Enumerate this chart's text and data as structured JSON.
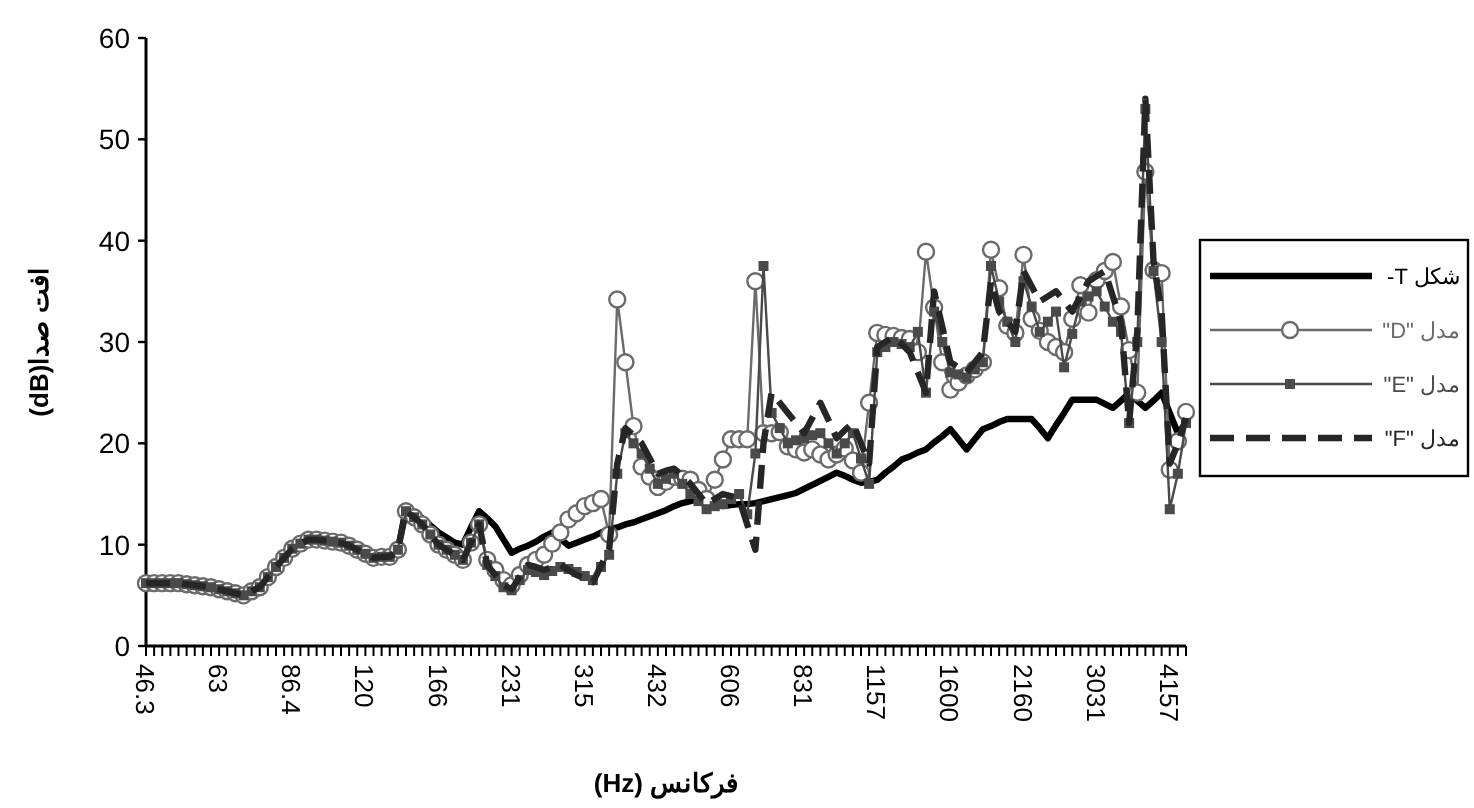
{
  "chart_data": {
    "type": "line",
    "xlabel": "فرکانس (Hz)",
    "ylabel": "افت صدا(dB)",
    "ylim": [
      0,
      60
    ],
    "yticks": [
      0,
      10,
      20,
      30,
      40,
      50,
      60
    ],
    "legend": "right",
    "grid": false,
    "categories": [
      "46.3",
      null,
      null,
      null,
      null,
      null,
      null,
      null,
      null,
      "63",
      null,
      null,
      null,
      null,
      null,
      null,
      null,
      null,
      "86.4",
      null,
      null,
      null,
      null,
      null,
      null,
      null,
      null,
      "120",
      null,
      null,
      null,
      null,
      null,
      null,
      null,
      null,
      "166",
      null,
      null,
      null,
      null,
      null,
      null,
      null,
      null,
      "231",
      null,
      null,
      null,
      null,
      null,
      null,
      null,
      null,
      "315",
      null,
      null,
      null,
      null,
      null,
      null,
      null,
      null,
      "432",
      null,
      null,
      null,
      null,
      null,
      null,
      null,
      null,
      "606",
      null,
      null,
      null,
      null,
      null,
      null,
      null,
      null,
      "831",
      null,
      null,
      null,
      null,
      null,
      null,
      null,
      null,
      "1157",
      null,
      null,
      null,
      null,
      null,
      null,
      null,
      null,
      "1600",
      null,
      null,
      null,
      null,
      null,
      null,
      null,
      null,
      "2160",
      null,
      null,
      null,
      null,
      null,
      null,
      null,
      null,
      "3031",
      null,
      null,
      null,
      null,
      null,
      null,
      null,
      null,
      "4157",
      null,
      null
    ],
    "series": [
      {
        "name": "شکل T-",
        "color": "#000000",
        "marker": "none",
        "line_style": "solid",
        "values": [
          6.2,
          6.2,
          6.2,
          6.2,
          6.2,
          6.1,
          6.0,
          5.9,
          5.8,
          5.6,
          5.4,
          5.2,
          5.0,
          5.4,
          5.8,
          6.8,
          7.8,
          8.7,
          9.6,
          10.1,
          10.5,
          10.5,
          10.4,
          10.3,
          10.2,
          9.9,
          9.5,
          9.1,
          8.7,
          8.8,
          8.8,
          9.5,
          13.6,
          13.1,
          12.6,
          11.9,
          11.2,
          10.7,
          10.2,
          10.0,
          11.7,
          13.3,
          12.6,
          11.8,
          10.5,
          9.2,
          9.6,
          9.9,
          10.3,
          10.8,
          11.2,
          10.6,
          9.9,
          10.2,
          10.5,
          10.8,
          11.2,
          11.5,
          11.7,
          12.0,
          12.2,
          12.5,
          12.8,
          13.1,
          13.4,
          13.8,
          14.1,
          14.3,
          14.5,
          14.3,
          14.0,
          13.8,
          13.9,
          14.0,
          14.0,
          14.1,
          14.3,
          14.5,
          14.7,
          14.9,
          15.1,
          15.5,
          15.9,
          16.3,
          16.7,
          17.1,
          16.8,
          16.4,
          16.1,
          16.2,
          16.4,
          17.1,
          17.7,
          18.4,
          18.7,
          19.1,
          19.4,
          20.1,
          20.7,
          21.4,
          20.4,
          19.4,
          20.4,
          21.4,
          21.7,
          22.1,
          22.4,
          22.4,
          22.4,
          22.4,
          21.5,
          20.5,
          21.8,
          23.0,
          24.3,
          24.3,
          24.3,
          24.3,
          23.9,
          23.5,
          24.2,
          25.0,
          24.2,
          23.5,
          24.2,
          25.0,
          23.0,
          21.0,
          22.0
        ]
      },
      {
        "name": "مدل \"D\"",
        "color": "#6b6b6b",
        "marker": "circle",
        "line_style": "solid",
        "values": [
          6.2,
          6.2,
          6.2,
          6.2,
          6.2,
          6.1,
          6.0,
          5.9,
          5.8,
          5.6,
          5.4,
          5.2,
          5.0,
          5.4,
          5.8,
          6.8,
          7.8,
          8.7,
          9.6,
          10.1,
          10.5,
          10.5,
          10.4,
          10.3,
          10.2,
          9.9,
          9.5,
          9.1,
          8.7,
          8.8,
          8.8,
          9.5,
          13.3,
          12.7,
          12.0,
          11.0,
          10.0,
          9.5,
          9.0,
          8.5,
          10.2,
          12.0,
          8.5,
          7.5,
          6.5,
          6.0,
          7.0,
          8.0,
          8.5,
          9.0,
          10.1,
          11.2,
          12.5,
          13.1,
          13.8,
          14.1,
          14.5,
          11.0,
          34.2,
          28.0,
          21.7,
          17.7,
          16.7,
          15.7,
          16.2,
          16.7,
          16.5,
          16.4,
          15.4,
          14.5,
          16.4,
          18.4,
          20.4,
          20.4,
          20.4,
          36.0,
          21.0,
          21.0,
          21.1,
          19.7,
          19.4,
          19.1,
          19.4,
          18.9,
          18.4,
          18.9,
          19.5,
          18.3,
          17.1,
          24.0,
          30.9,
          30.7,
          30.6,
          30.4,
          30.3,
          29.0,
          38.9,
          33.4,
          28.0,
          25.3,
          26.0,
          26.7,
          27.3,
          28.0,
          39.1,
          35.3,
          31.6,
          30.9,
          38.6,
          32.3,
          31.1,
          30.0,
          29.5,
          29.0,
          32.3,
          35.6,
          32.9,
          36.1,
          37.0,
          37.9,
          33.5,
          29.2,
          25.0,
          46.8,
          37.1,
          36.8,
          17.4,
          20.2,
          23.1
        ]
      },
      {
        "name": "مدل \"E\"",
        "color": "#4a4a4a",
        "marker": "square",
        "line_style": "solid",
        "values": [
          6.2,
          6.2,
          6.2,
          6.2,
          6.2,
          6.1,
          6.0,
          5.9,
          5.8,
          5.6,
          5.4,
          5.2,
          5.0,
          5.4,
          5.8,
          6.8,
          7.8,
          8.7,
          9.6,
          10.1,
          10.5,
          10.5,
          10.4,
          10.3,
          10.2,
          9.9,
          9.5,
          9.1,
          8.7,
          8.8,
          8.8,
          9.5,
          13.3,
          12.7,
          12.0,
          11.0,
          10.0,
          9.5,
          9.0,
          8.5,
          10.2,
          12.0,
          8.0,
          6.9,
          5.8,
          5.5,
          6.5,
          7.5,
          7.3,
          7.0,
          7.4,
          7.8,
          7.6,
          7.3,
          6.9,
          6.5,
          7.8,
          9.0,
          17.0,
          21.0,
          20.0,
          19.0,
          17.5,
          16.0,
          16.5,
          17.0,
          16.0,
          15.0,
          14.3,
          13.5,
          13.8,
          14.0,
          14.5,
          15.0,
          13.0,
          19.0,
          37.5,
          23.0,
          21.5,
          20.0,
          20.3,
          20.5,
          20.8,
          21.0,
          20.0,
          19.0,
          20.0,
          21.0,
          18.5,
          16.0,
          29.0,
          29.5,
          30.0,
          29.8,
          29.5,
          31.0,
          25.0,
          33.0,
          30.0,
          27.0,
          26.8,
          26.5,
          27.3,
          28.0,
          37.5,
          34.0,
          32.0,
          30.0,
          36.0,
          33.5,
          31.0,
          32.0,
          33.0,
          27.5,
          30.8,
          34.0,
          34.5,
          35.0,
          33.5,
          32.0,
          31.0,
          22.0,
          30.0,
          53.0,
          37.0,
          30.0,
          13.5,
          17.0,
          22.0
        ]
      },
      {
        "name": "مدل \"F\"",
        "color": "#262626",
        "marker": "none",
        "line_style": "dashed",
        "values": [
          6.2,
          6.2,
          6.2,
          6.2,
          6.2,
          6.1,
          6.0,
          5.9,
          5.8,
          5.6,
          5.4,
          5.2,
          5.0,
          5.4,
          5.8,
          6.8,
          7.8,
          8.7,
          9.6,
          10.1,
          10.5,
          10.5,
          10.4,
          10.3,
          10.2,
          9.9,
          9.5,
          9.1,
          8.7,
          8.8,
          8.8,
          9.5,
          13.3,
          12.7,
          12.0,
          11.0,
          10.0,
          9.5,
          9.0,
          8.5,
          10.2,
          12.0,
          8.0,
          7.0,
          6.0,
          5.6,
          6.8,
          8.0,
          7.8,
          7.5,
          7.8,
          8.0,
          7.5,
          7.0,
          6.7,
          6.3,
          7.9,
          9.5,
          18.0,
          21.5,
          20.8,
          20.0,
          18.5,
          17.0,
          17.3,
          17.5,
          16.8,
          16.0,
          15.0,
          14.0,
          14.5,
          15.0,
          14.8,
          14.5,
          12.0,
          9.5,
          20.0,
          25.0,
          24.0,
          23.0,
          22.0,
          21.0,
          22.5,
          24.0,
          22.3,
          20.5,
          21.3,
          22.0,
          20.0,
          18.0,
          29.5,
          30.0,
          30.5,
          29.8,
          29.0,
          27.0,
          25.0,
          35.0,
          31.5,
          28.0,
          27.5,
          27.0,
          28.0,
          29.0,
          36.0,
          33.0,
          32.0,
          31.0,
          37.0,
          35.5,
          34.0,
          34.5,
          35.0,
          34.0,
          33.0,
          34.5,
          36.0,
          36.5,
          37.0,
          34.5,
          32.0,
          22.0,
          31.0,
          54.0,
          38.0,
          33.0,
          18.0,
          20.0,
          22.5
        ]
      }
    ]
  }
}
